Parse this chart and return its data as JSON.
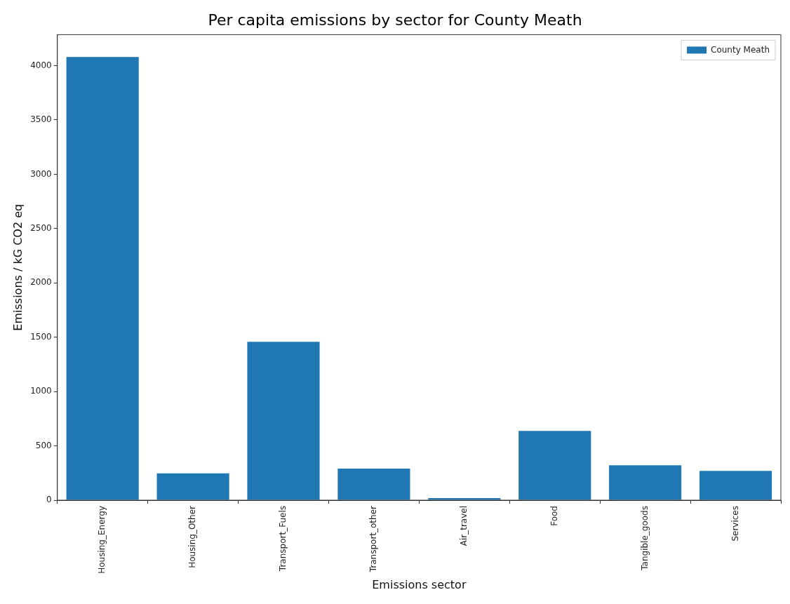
{
  "chart_data": {
    "type": "bar",
    "title": "Per capita emissions by sector for County Meath",
    "xlabel": "Emissions sector",
    "ylabel": "Emissions / kG CO2 eq",
    "categories": [
      "Housing_Energy",
      "Housing_Other",
      "Transport_Fuels",
      "Transport_other",
      "Air_travel",
      "Food",
      "Tangible_goods",
      "Services"
    ],
    "series": [
      {
        "name": "County Meath",
        "color": "#1f77b4",
        "values": [
          4080,
          247,
          1457,
          291,
          19,
          638,
          321,
          269
        ]
      }
    ],
    "ylim": [
      0,
      4285
    ],
    "yticks": [
      0,
      500,
      1000,
      1500,
      2000,
      2500,
      3000,
      3500,
      4000
    ],
    "grid": false,
    "legend": "top right"
  }
}
